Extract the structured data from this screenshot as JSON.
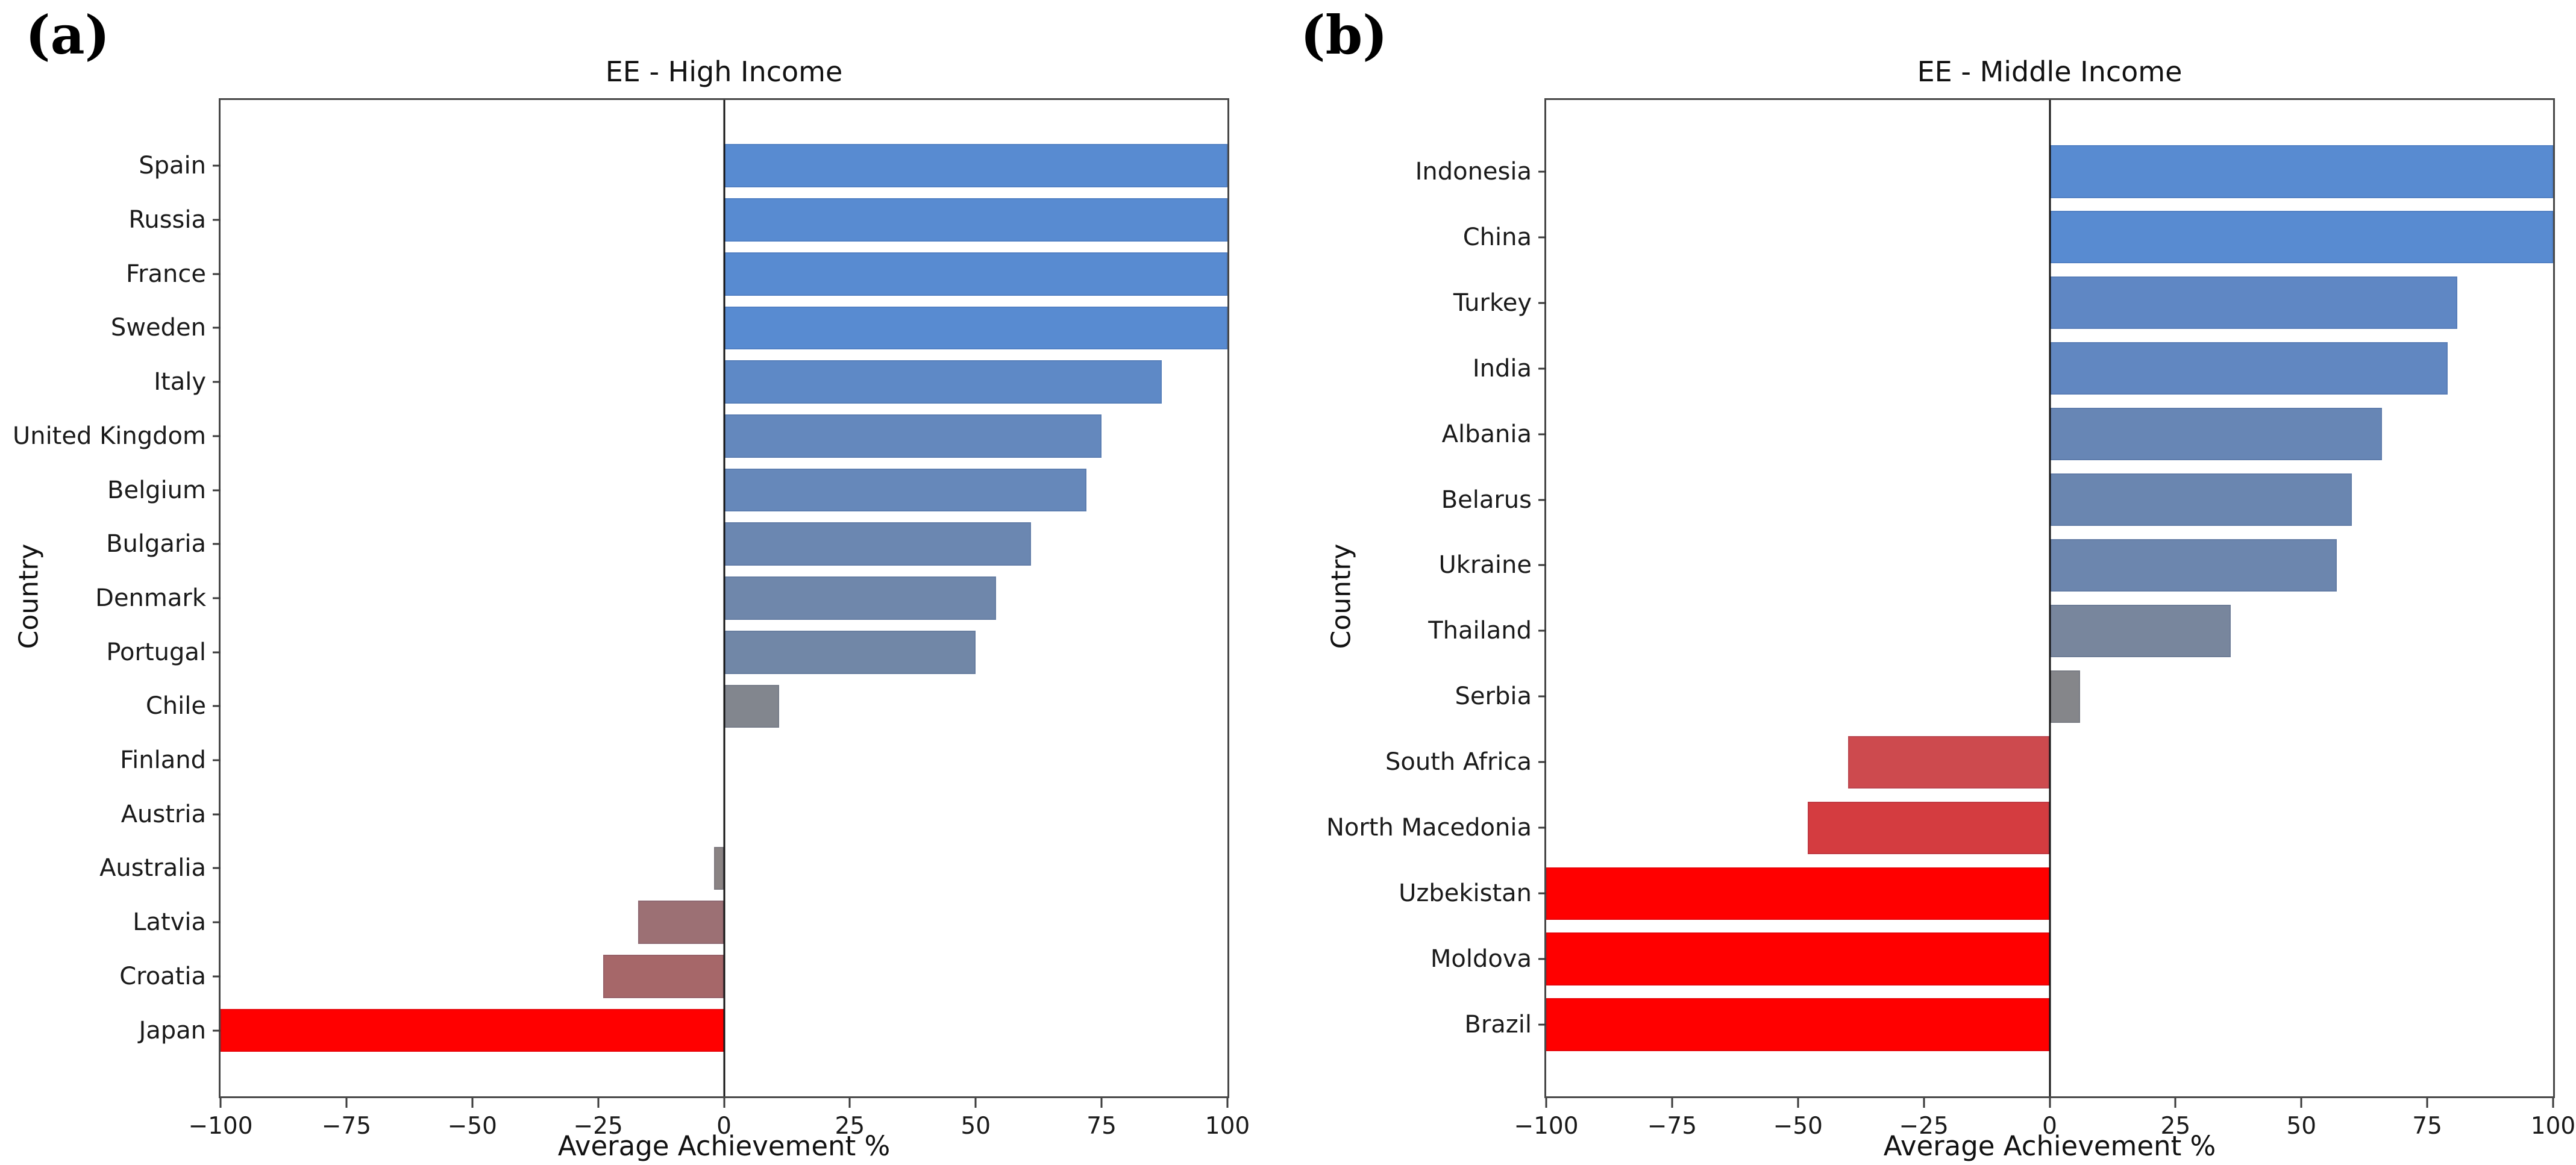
{
  "panels": [
    {
      "marker": "(a)"
    },
    {
      "marker": "(b)"
    }
  ],
  "axis": {
    "x_label": "Average Achievement %",
    "y_label": "Country",
    "x_tick_values": [
      -100,
      -75,
      -50,
      -25,
      0,
      25,
      50,
      75,
      100
    ],
    "x_tick_labels": [
      "−100",
      "−75",
      "−50",
      "−25",
      "0",
      "25",
      "50",
      "75",
      "100"
    ]
  },
  "colors": {
    "positive_max_blue": "#588BD1",
    "neutral_gray": "#868686",
    "negative_max_red": "#FF0000",
    "frame": "#484848"
  },
  "chart_data": [
    {
      "type": "bar",
      "orientation": "horizontal",
      "title": "EE - High Income",
      "xlabel": "Average Achievement %",
      "ylabel": "Country",
      "xlim": [
        -100,
        100
      ],
      "grid": false,
      "legend": "none",
      "categories": [
        "Spain",
        "Russia",
        "France",
        "Sweden",
        "Italy",
        "United Kingdom",
        "Belgium",
        "Bulgaria",
        "Denmark",
        "Portugal",
        "Chile",
        "Finland",
        "Austria",
        "Australia",
        "Latvia",
        "Croatia",
        "Japan"
      ],
      "values": [
        100,
        100,
        100,
        100,
        87,
        75,
        72,
        61,
        54,
        50,
        11,
        0,
        0,
        -2,
        -17,
        -24,
        -100
      ],
      "colors": [
        "#588BD1",
        "#588BD1",
        "#588BD1",
        "#588BD1",
        "#5E89C6",
        "#6488BD",
        "#6688BA",
        "#6B87B1",
        "#6F87AB",
        "#7187A7",
        "#82868E",
        "#868686",
        "#868686",
        "#8A8383",
        "#9C7074",
        "#A66769",
        "#FF0000"
      ]
    },
    {
      "type": "bar",
      "orientation": "horizontal",
      "title": "EE - Middle Income",
      "xlabel": "Average Achievement %",
      "ylabel": "Country",
      "xlim": [
        -100,
        100
      ],
      "grid": false,
      "legend": "none",
      "categories": [
        "Indonesia",
        "China",
        "Turkey",
        "India",
        "Albania",
        "Belarus",
        "Ukraine",
        "Thailand",
        "Serbia",
        "South Africa",
        "North Macedonia",
        "Uzbekistan",
        "Moldova",
        "Brazil"
      ],
      "values": [
        100,
        100,
        81,
        79,
        66,
        60,
        57,
        36,
        6,
        -40,
        -48,
        -100,
        -100,
        -100
      ],
      "colors": [
        "#588BD1",
        "#588BD1",
        "#5F87C4",
        "#6187C1",
        "#6786B5",
        "#6A86B0",
        "#6C86AE",
        "#78869D",
        "#85868A",
        "#CD4A4E",
        "#D43C40",
        "#FF0000",
        "#FF0000",
        "#FF0000"
      ]
    }
  ]
}
